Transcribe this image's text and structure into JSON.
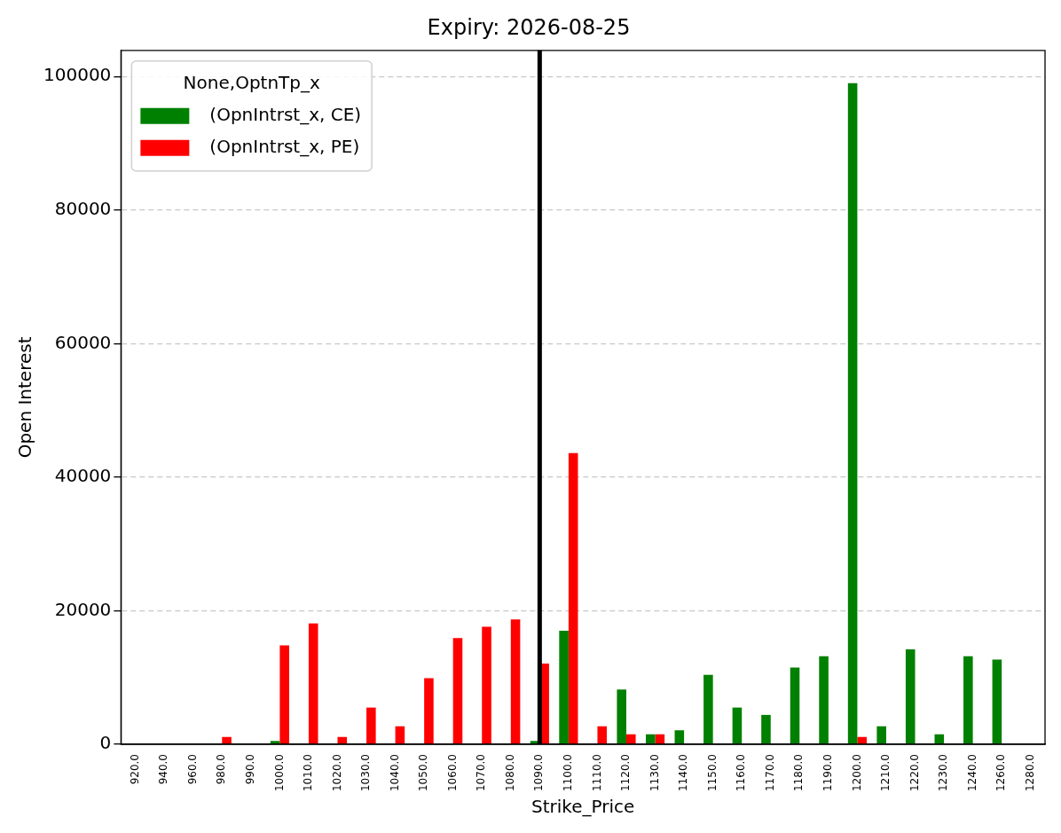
{
  "chart_data": {
    "type": "bar",
    "title": "Expiry: 2026-08-25",
    "xlabel": "Strike_Price",
    "ylabel": "Open Interest",
    "legend_title": "None,OptnTp_x",
    "categories": [
      "920.0",
      "940.0",
      "960.0",
      "980.0",
      "990.0",
      "1000.0",
      "1010.0",
      "1020.0",
      "1030.0",
      "1040.0",
      "1050.0",
      "1060.0",
      "1070.0",
      "1080.0",
      "1090.0",
      "1100.0",
      "1110.0",
      "1120.0",
      "1130.0",
      "1140.0",
      "1150.0",
      "1160.0",
      "1170.0",
      "1180.0",
      "1190.0",
      "1200.0",
      "1210.0",
      "1220.0",
      "1230.0",
      "1240.0",
      "1260.0",
      "1280.0"
    ],
    "series": [
      {
        "name": "(OpnIntrst_x, CE)",
        "color": "#008000",
        "values": [
          0,
          0,
          0,
          0,
          0,
          500,
          0,
          0,
          0,
          0,
          0,
          0,
          0,
          0,
          500,
          17000,
          0,
          8200,
          1500,
          2100,
          10400,
          5500,
          4400,
          11500,
          13200,
          99000,
          2700,
          14200,
          1500,
          13200,
          12700,
          0
        ]
      },
      {
        "name": "(OpnIntrst_x, PE)",
        "color": "#ff0000",
        "values": [
          0,
          0,
          0,
          1100,
          0,
          14800,
          18100,
          1100,
          5500,
          2700,
          9900,
          15900,
          17600,
          18700,
          12100,
          43600,
          2700,
          1500,
          1500,
          0,
          0,
          0,
          0,
          0,
          0,
          1100,
          0,
          0,
          0,
          0,
          0,
          0
        ]
      }
    ],
    "ylim": [
      0,
      103900
    ],
    "yticks": [
      0,
      20000,
      40000,
      60000,
      80000,
      100000
    ],
    "grid": "y",
    "legend": "top left",
    "ref_lines": [
      {
        "axis": "x",
        "value": "1090.0",
        "color": "#000000"
      }
    ]
  }
}
